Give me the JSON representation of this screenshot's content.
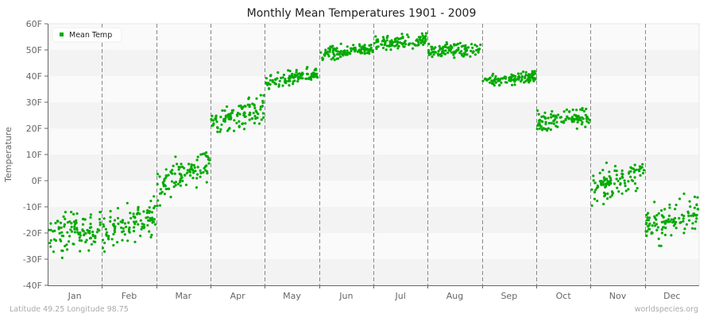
{
  "title": "Monthly Mean Temperatures 1901 - 2009",
  "footer_left": "Latitude 49.25 Longitude 98.75",
  "footer_right": "worldspecies.org",
  "legend": {
    "label": "Mean Temp",
    "color": "#00aa00"
  },
  "colors": {
    "point": "#00aa00",
    "band_light": "#fafafa",
    "band_dark": "#f3f3f3",
    "grid": "#888888",
    "axis": "#666666"
  },
  "chart_data": {
    "type": "scatter",
    "title": "Monthly Mean Temperatures 1901 - 2009",
    "xlabel": "",
    "ylabel": "Temperature",
    "ylim": [
      -40,
      60
    ],
    "yticks": [
      "60F",
      "50F",
      "40F",
      "30F",
      "20F",
      "10F",
      "0F",
      "-10F",
      "-20F",
      "-30F",
      "-40F"
    ],
    "ytick_values": [
      60,
      50,
      40,
      30,
      20,
      10,
      0,
      -10,
      -20,
      -30,
      -40
    ],
    "categories": [
      "Jan",
      "Feb",
      "Mar",
      "Apr",
      "May",
      "Jun",
      "Jul",
      "Aug",
      "Sep",
      "Oct",
      "Nov",
      "Dec"
    ],
    "legend": [
      "Mean Temp"
    ],
    "legend_position": "top-left",
    "grid": "horizontal alternating bands, vertical dashed month separators",
    "series": [
      {
        "name": "Mean Temp",
        "points_per_month": 109,
        "monthly_distribution": [
          {
            "month": "Jan",
            "start_mean": -22,
            "end_mean": -17,
            "spread": 5.5,
            "min": -36,
            "max": -12
          },
          {
            "month": "Feb",
            "start_mean": -20,
            "end_mean": -13,
            "spread": 5,
            "min": -34,
            "max": 2
          },
          {
            "month": "Mar",
            "start_mean": -3,
            "end_mean": 8,
            "spread": 4.5,
            "min": -11,
            "max": 13
          },
          {
            "month": "Apr",
            "start_mean": 22,
            "end_mean": 28,
            "spread": 4,
            "min": 17,
            "max": 35
          },
          {
            "month": "May",
            "start_mean": 37,
            "end_mean": 41,
            "spread": 2,
            "min": 33,
            "max": 45
          },
          {
            "month": "Jun",
            "start_mean": 48,
            "end_mean": 51,
            "spread": 1.8,
            "min": 44,
            "max": 55
          },
          {
            "month": "Jul",
            "start_mean": 52,
            "end_mean": 54,
            "spread": 1.8,
            "min": 49,
            "max": 60
          },
          {
            "month": "Aug",
            "start_mean": 50,
            "end_mean": 50,
            "spread": 1.8,
            "min": 45,
            "max": 55
          },
          {
            "month": "Sep",
            "start_mean": 38,
            "end_mean": 40,
            "spread": 1.8,
            "min": 35,
            "max": 43
          },
          {
            "month": "Oct",
            "start_mean": 22,
            "end_mean": 25,
            "spread": 3,
            "min": 15,
            "max": 33
          },
          {
            "month": "Nov",
            "start_mean": -3,
            "end_mean": 3,
            "spread": 4,
            "min": -12,
            "max": 13
          },
          {
            "month": "Dec",
            "start_mean": -18,
            "end_mean": -12,
            "spread": 5,
            "min": -32,
            "max": -5
          }
        ]
      }
    ]
  }
}
